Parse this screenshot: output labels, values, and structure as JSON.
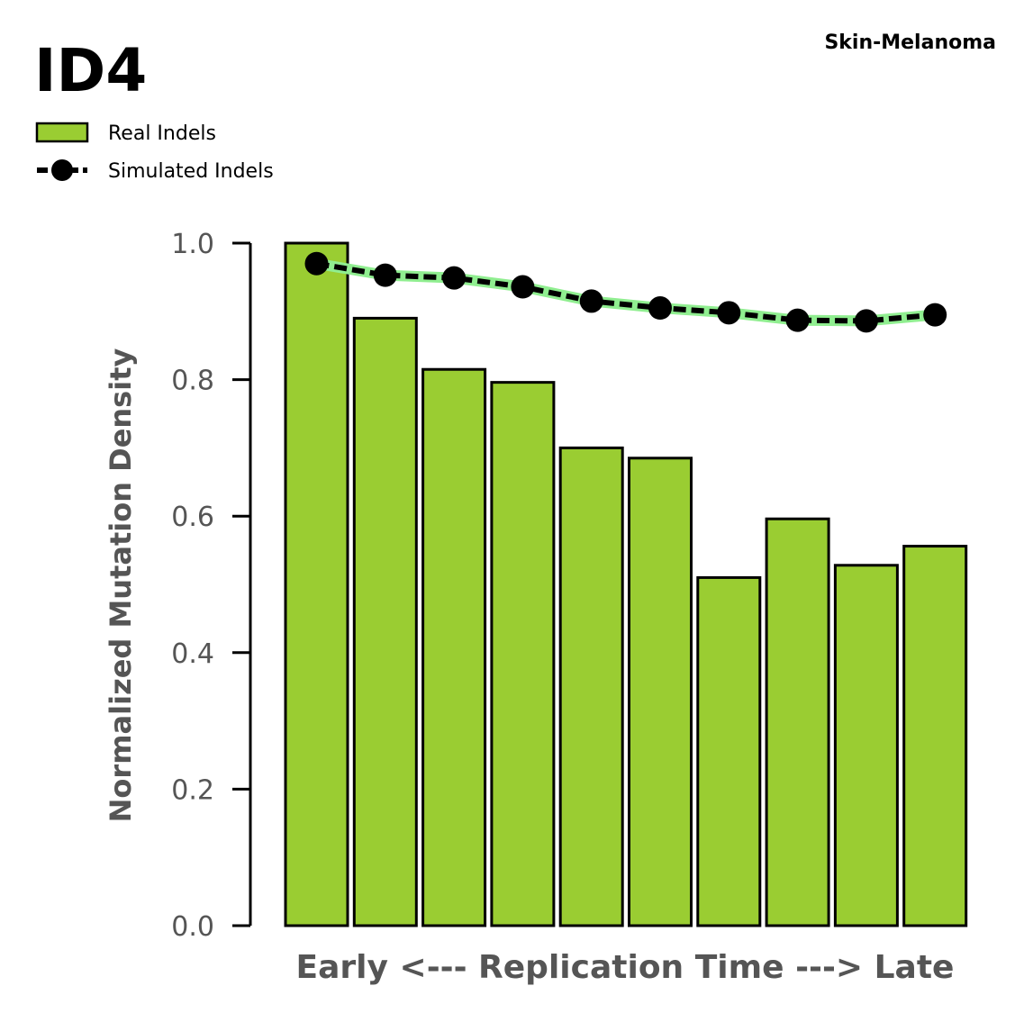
{
  "chart_data": {
    "type": "bar",
    "title": "ID4",
    "subtitle": "Skin-Melanoma",
    "xlabel": "Early <--- Replication Time ---> Late",
    "ylabel": "Normalized Mutation Density",
    "ylim": [
      0,
      1.0
    ],
    "yticks": [
      "0.0",
      "0.2",
      "0.4",
      "0.6",
      "0.8",
      "1.0"
    ],
    "grid": false,
    "legend_position": "top-left",
    "series": [
      {
        "name": "Real Indels",
        "type": "bar",
        "color": "#9acd32",
        "values": [
          1.0,
          0.89,
          0.815,
          0.796,
          0.7,
          0.685,
          0.51,
          0.596,
          0.528,
          0.556
        ]
      },
      {
        "name": "Simulated Indels",
        "type": "line",
        "color": "#000000",
        "band_color": "#90ee90",
        "values": [
          0.97,
          0.953,
          0.949,
          0.936,
          0.915,
          0.905,
          0.898,
          0.887,
          0.886,
          0.895
        ]
      }
    ]
  }
}
